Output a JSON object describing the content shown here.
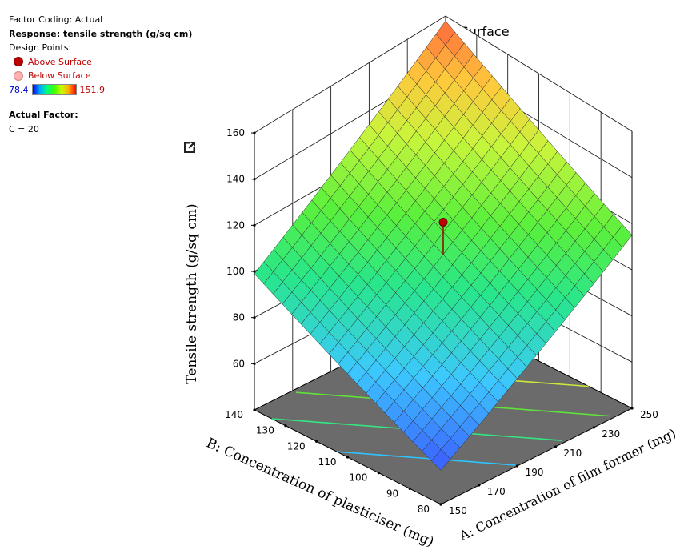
{
  "info": {
    "factor_coding": "Factor Coding: Actual",
    "response": "Response: tensile strength (g/sq cm)",
    "design_points": "Design Points:",
    "above_surface": "Above Surface",
    "below_surface": "Below Surface",
    "colorbar_min": "78.4",
    "colorbar_max": "151.9",
    "actual_factor": "Actual Factor:",
    "actual_factor_value": "C = 20"
  },
  "colors": {
    "above_surface": "#c00000",
    "below_surface": "#ffb0b0",
    "floor": "#6b6b6b"
  },
  "chart_data": {
    "type": "surface3d",
    "title": "3D Surface",
    "xlabel": "A: Concentration of film former (mg)",
    "ylabel": "B: Concentration of plasticiser (mg)",
    "zlabel": "Tensile strength (g/sq cm)",
    "x_ticks": [
      "150",
      "170",
      "190",
      "210",
      "230",
      "250"
    ],
    "y_ticks": [
      "80",
      "90",
      "100",
      "110",
      "120",
      "130",
      "140"
    ],
    "z_ticks": [
      "60",
      "80",
      "100",
      "120",
      "140",
      "160"
    ],
    "xlim": [
      150,
      250
    ],
    "ylim": [
      80,
      140
    ],
    "zlim": [
      40,
      160
    ],
    "surface_corners": {
      "a150_b80": 56,
      "a150_b140": 99,
      "a250_b80": 115,
      "a250_b140": 158
    },
    "design_points": [
      {
        "a": 200,
        "b": 110,
        "z": 121,
        "position": "above"
      }
    ]
  }
}
